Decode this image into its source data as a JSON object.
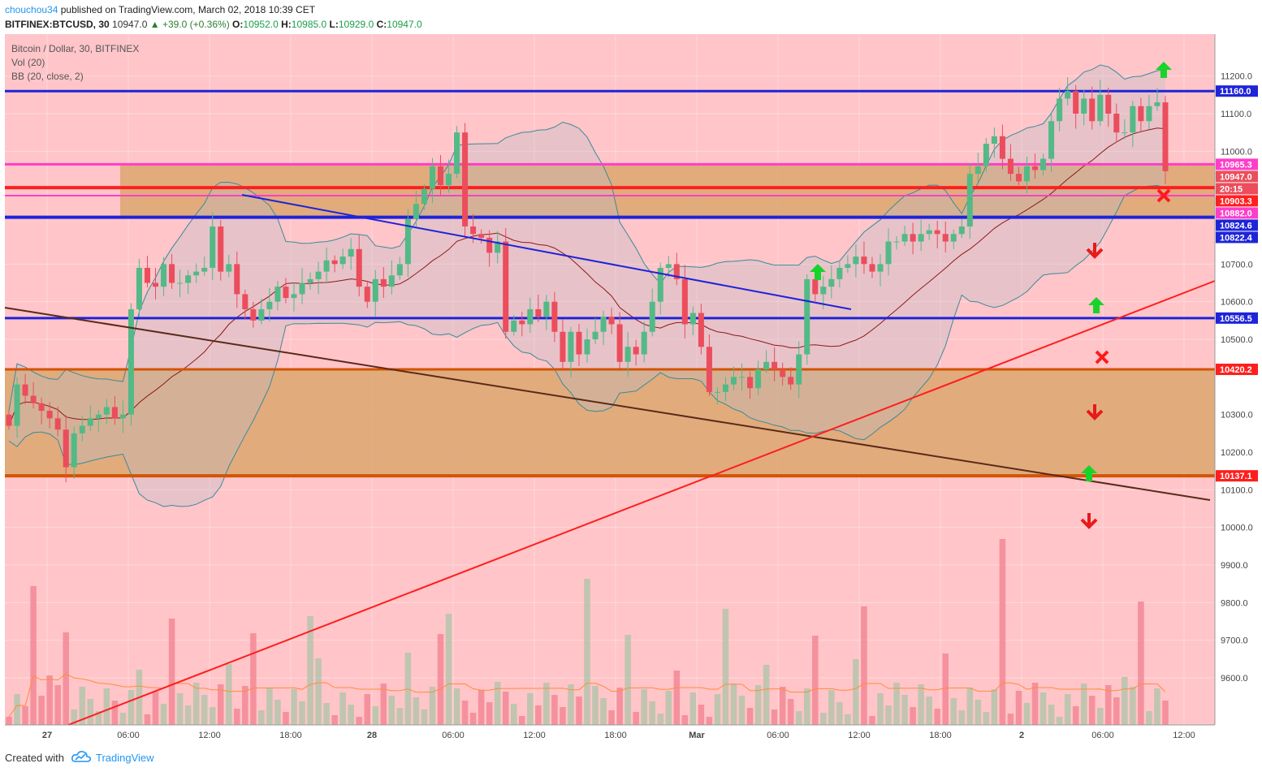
{
  "header": {
    "author": "chouchou34",
    "published": " published on TradingView.com, March 02, 2018 10:39 CET",
    "symbol": "BITFINEX:BTCUSD, 30",
    "last": "10947.0",
    "change": "▲ +39.0 (+0.36%)",
    "open_label": "O:",
    "open": "10952.0",
    "high_label": "H:",
    "high": "10985.0",
    "low_label": "L:",
    "low": "10929.0",
    "close_label": "C:",
    "close": "10947.0"
  },
  "legend": {
    "title": "Bitcoin / Dollar, 30, BITFINEX",
    "volume": "Vol (20)",
    "bollinger": "BB (20, close, 2)"
  },
  "footer": {
    "created_with": "Created with",
    "brand": "TradingView"
  },
  "colors": {
    "background": "#ffc5c9",
    "zone": "#dca66e",
    "up": "#53b987",
    "down": "#eb4d5c",
    "blue_line": "#1e24d8",
    "magenta_line": "#ff3dc8",
    "red_line": "#ff1e1e",
    "orange_line": "#d35400",
    "bb_band": "#3a8a9a",
    "bb_basis": "#8b1a1a",
    "vol_ma": "#ff8c3a"
  },
  "chart_data": {
    "type": "candlestick",
    "title": "Bitcoin / Dollar, 30, BITFINEX",
    "price_range": [
      9580,
      11250
    ],
    "y_ticks": [
      11200,
      11100,
      11000,
      10700,
      10600,
      10500,
      10300,
      10200,
      10100,
      10000,
      9900,
      9800,
      9700,
      9600
    ],
    "x_labels": [
      "27",
      "06:00",
      "12:00",
      "18:00",
      "28",
      "06:00",
      "12:00",
      "18:00",
      "Mar",
      "06:00",
      "12:00",
      "18:00",
      "2",
      "06:00",
      "12:00"
    ],
    "price_tags": [
      {
        "label": "11160.0",
        "value": 11160,
        "color": "#1e24d8"
      },
      {
        "label": "10965.3",
        "value": 10965.3,
        "color": "#ff3dc8"
      },
      {
        "label": "10947.0",
        "value": 10947,
        "color": "#eb4d5c"
      },
      {
        "label": "20:15",
        "value": 10922,
        "color": "#eb4d5c"
      },
      {
        "label": "10903.3",
        "value": 10903.3,
        "color": "#ff1e1e"
      },
      {
        "label": "10882.0",
        "value": 10882,
        "color": "#ff3dc8"
      },
      {
        "label": "10824.6",
        "value": 10824.6,
        "color": "#1e24d8"
      },
      {
        "label": "10822.4",
        "value": 10822.4,
        "color": "#1e24d8"
      },
      {
        "label": "10556.5",
        "value": 10556.5,
        "color": "#1e24d8"
      },
      {
        "label": "10420.2",
        "value": 10420.2,
        "color": "#ff1e1e"
      },
      {
        "label": "10137.1",
        "value": 10137.1,
        "color": "#ff1e1e"
      }
    ],
    "closes": [
      10270,
      10380,
      10350,
      10330,
      10310,
      10290,
      10260,
      10160,
      10250,
      10270,
      10290,
      10300,
      10320,
      10290,
      10300,
      10580,
      10690,
      10650,
      10640,
      10700,
      10650,
      10650,
      10670,
      10680,
      10690,
      10800,
      10680,
      10700,
      10620,
      10580,
      10550,
      10580,
      10600,
      10640,
      10610,
      10620,
      10650,
      10660,
      10680,
      10710,
      10700,
      10720,
      10740,
      10640,
      10600,
      10660,
      10640,
      10670,
      10700,
      10820,
      10860,
      10900,
      10960,
      10910,
      10940,
      11050,
      10800,
      10780,
      10770,
      10730,
      10760,
      10520,
      10550,
      10540,
      10580,
      10560,
      10600,
      10520,
      10440,
      10520,
      10460,
      10500,
      10520,
      10560,
      10540,
      10440,
      10480,
      10460,
      10520,
      10600,
      10690,
      10700,
      10660,
      10540,
      10570,
      10480,
      10360,
      10360,
      10380,
      10400,
      10400,
      10370,
      10420,
      10440,
      10420,
      10400,
      10380,
      10460,
      10660,
      10620,
      10640,
      10660,
      10690,
      10700,
      10720,
      10700,
      10680,
      10700,
      10760,
      10760,
      10780,
      10760,
      10780,
      10790,
      10780,
      10760,
      10780,
      10800,
      10940,
      10960,
      11020,
      11040,
      10980,
      10940,
      10920,
      10960,
      10950,
      10980,
      11080,
      11140,
      11160,
      11100,
      11140,
      11080,
      11150,
      11100,
      11050,
      11050,
      11120,
      11080,
      11120,
      11130,
      10947
    ],
    "levels": [
      11160,
      10965.3,
      10903.3,
      10882,
      10824.6,
      10556.5,
      10420.2,
      10137.1
    ],
    "zones": [
      [
        10824.6,
        10965.3
      ],
      [
        10137.1,
        10420.2
      ]
    ]
  }
}
